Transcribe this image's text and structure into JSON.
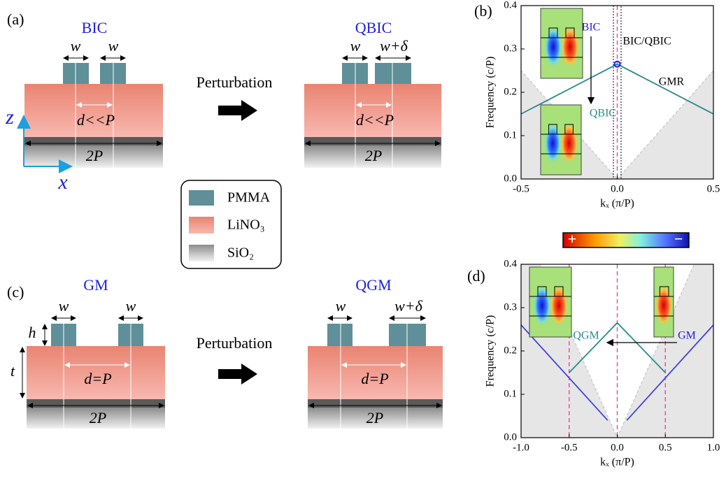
{
  "figure": {
    "panel_a": {
      "label": "(a)",
      "left_title": "BIC",
      "right_title": "QBIC",
      "left_w": [
        "w",
        "w"
      ],
      "right_w": [
        "w",
        "w+δ"
      ],
      "left_d": "d<<P",
      "right_d": "d<<P",
      "left_period": "2P",
      "right_period": "2P",
      "arrow_label": "Perturbation",
      "axis_z": "z",
      "axis_x": "x"
    },
    "panel_c": {
      "label": "(c)",
      "left_title": "GM",
      "right_title": "QGM",
      "left_w": [
        "w",
        "w"
      ],
      "right_w": [
        "w",
        "w+δ"
      ],
      "left_d": "d=P",
      "right_d": "d=P",
      "left_period": "2P",
      "right_period": "2P",
      "arrow_label": "Perturbation",
      "height": "h",
      "thickness": "t"
    },
    "legend": [
      "PMMA",
      "LiNO₃",
      "SiO₂"
    ],
    "colorbar": [
      "+",
      "−"
    ]
  },
  "chart_data": [
    {
      "type": "line",
      "label": "(b)",
      "xlabel": "kₓ (π/P)",
      "ylabel": "Frequency (c/P)",
      "xlim": [
        -0.5,
        0.5
      ],
      "ylim": [
        0,
        0.4
      ],
      "xticks": [
        -0.5,
        {
          "value": 0,
          "label": "0.0"
        },
        0.5
      ],
      "yticks": [
        {
          "value": 0,
          "label": "0.0"
        },
        0.1,
        0.2,
        0.3,
        0.4
      ],
      "regions": {
        "color": "#e6e6e6",
        "items": [
          {
            "x": [
              -0.5,
              -0.5,
              0
            ],
            "values": [
              0,
              0.25,
              0
            ]
          },
          {
            "x": [
              0,
              0.5,
              0.5
            ],
            "values": [
              0,
              0.25,
              0
            ]
          }
        ]
      },
      "series": [
        {
          "color": "#2a8c8c",
          "x": [
            -0.5,
            0,
            0.5
          ],
          "values": [
            0.15,
            0.265,
            0.15
          ]
        }
      ],
      "points": [
        {
          "color": "#1a1aff",
          "x": 0,
          "y": 0.265
        }
      ],
      "vlines": {
        "color": "#ff3399",
        "x": [
          0
        ]
      },
      "band": [
        -0.02,
        0.02
      ],
      "annotations": [
        "BIC",
        "QBIC",
        "BIC/QBIC",
        "GMR"
      ]
    },
    {
      "type": "line",
      "label": "(d)",
      "xlabel": "kₓ (π/P)",
      "ylabel": "Frequency (c/P)",
      "xlim": [
        -1,
        1
      ],
      "ylim": [
        0,
        0.4
      ],
      "xticks": [
        {
          "value": -1,
          "label": "-1.0"
        },
        -0.5,
        {
          "value": 0,
          "label": "0.0"
        },
        0.5,
        {
          "value": 1,
          "label": "1.0"
        }
      ],
      "yticks": [
        {
          "value": 0,
          "label": "0.0"
        },
        0.1,
        0.2,
        0.3,
        0.4
      ],
      "regions": {
        "color": "#e6e6e6",
        "items": [
          {
            "x": [
              -1,
              -1,
              -0.8,
              0
            ],
            "values": [
              0,
              0.4,
              0.4,
              0
            ]
          },
          {
            "x": [
              0,
              0.8,
              1,
              1
            ],
            "values": [
              0,
              0.4,
              0.4,
              0
            ]
          }
        ]
      },
      "series": [
        {
          "color": "#4040e0",
          "x": [
            -1,
            -0.1
          ],
          "values": [
            0.26,
            0.04
          ]
        },
        {
          "color": "#4040e0",
          "x": [
            0.1,
            1
          ],
          "values": [
            0.04,
            0.26
          ]
        },
        {
          "color": "#2a8c8c",
          "x": [
            -0.5,
            0,
            0.5
          ],
          "values": [
            0.15,
            0.265,
            0.15
          ]
        }
      ],
      "vlines": {
        "color": "#ff3399",
        "x": [
          -0.5,
          0,
          0.5
        ]
      },
      "annotations": [
        "QGM",
        "GM"
      ]
    }
  ]
}
